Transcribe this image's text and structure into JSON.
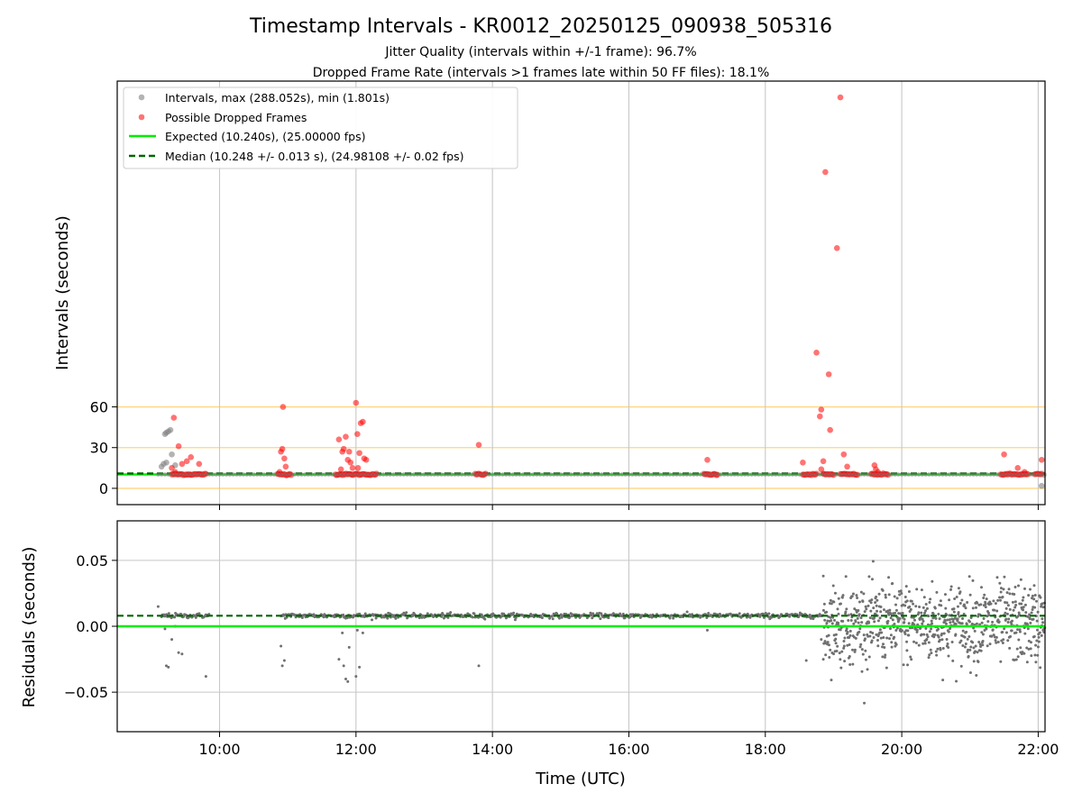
{
  "title": "Timestamp Intervals - KR0012_20250125_090938_505316",
  "subtitle_1": "Jitter Quality (intervals within +/-1 frame): 96.7%",
  "subtitle_2": "Dropped Frame Rate (intervals >1 frames late within 50 FF files): 18.1%",
  "colors": {
    "intervals": "#808080",
    "dropped": "#ff0000",
    "expected": "#00ee00",
    "median": "#006400",
    "threshold_lines": "#ffd580",
    "grid": "#c8c8c8"
  },
  "chart_data": [
    {
      "type": "scatter",
      "panel": "top",
      "xlabel": "",
      "ylabel": "Intervals (seconds)",
      "xlim_hours": [
        8.5,
        22.1
      ],
      "ylim": [
        -12,
        300
      ],
      "yticks": [
        0,
        30,
        60
      ],
      "xticks_hours": [
        10,
        12,
        14,
        16,
        18,
        20,
        22
      ],
      "grid": "vertical",
      "horizontal_reference_lines": [
        0,
        30,
        60
      ],
      "legend_position": "top-left",
      "legend": {
        "intervals": "Intervals, max (288.052s), min (1.801s)",
        "dropped": "Possible Dropped Frames",
        "expected": "Expected (10.240s), (25.00000 fps)",
        "median": "Median (10.248 +/- 0.013 s), (24.98108 +/- 0.02 fps)"
      },
      "expected_value": 10.24,
      "median_value": 10.248,
      "series": [
        {
          "name": "Intervals, max (288.052s), min (1.801s)",
          "points": [
            [
              9.15,
              16
            ],
            [
              9.18,
              18
            ],
            [
              9.2,
              40
            ],
            [
              9.22,
              41
            ],
            [
              9.25,
              42
            ],
            [
              9.28,
              43
            ],
            [
              9.3,
              25
            ],
            [
              9.22,
              19
            ],
            [
              9.35,
              17
            ],
            [
              22.05,
              1.8
            ],
            [
              22.08,
              10
            ]
          ]
        },
        {
          "name": "Possible Dropped Frames",
          "points": [
            [
              9.33,
              52
            ],
            [
              9.4,
              31
            ],
            [
              9.45,
              18
            ],
            [
              9.52,
              20
            ],
            [
              9.58,
              23
            ],
            [
              9.7,
              18
            ],
            [
              9.3,
              15
            ],
            [
              9.35,
              12
            ],
            [
              10.9,
              27
            ],
            [
              10.92,
              29
            ],
            [
              10.93,
              60
            ],
            [
              10.95,
              22
            ],
            [
              10.97,
              16
            ],
            [
              10.88,
              12
            ],
            [
              11.75,
              36
            ],
            [
              11.8,
              27
            ],
            [
              11.82,
              29
            ],
            [
              11.85,
              38
            ],
            [
              11.88,
              21
            ],
            [
              11.9,
              27
            ],
            [
              11.92,
              19
            ],
            [
              11.95,
              15
            ],
            [
              11.78,
              14
            ],
            [
              12.0,
              63
            ],
            [
              12.02,
              40
            ],
            [
              12.05,
              26
            ],
            [
              12.07,
              48
            ],
            [
              12.1,
              49
            ],
            [
              12.12,
              22
            ],
            [
              12.15,
              21
            ],
            [
              12.03,
              15
            ],
            [
              13.8,
              32
            ],
            [
              17.15,
              21
            ],
            [
              18.55,
              19
            ],
            [
              18.75,
              100
            ],
            [
              18.8,
              53
            ],
            [
              18.82,
              58
            ],
            [
              18.85,
              20
            ],
            [
              18.88,
              233
            ],
            [
              18.93,
              84
            ],
            [
              18.95,
              43
            ],
            [
              19.05,
              177
            ],
            [
              19.1,
              288
            ],
            [
              19.15,
              25
            ],
            [
              19.2,
              16
            ],
            [
              18.82,
              14
            ],
            [
              19.6,
              17
            ],
            [
              19.62,
              14
            ],
            [
              19.65,
              12
            ],
            [
              21.5,
              25
            ],
            [
              21.7,
              15
            ],
            [
              22.05,
              21
            ],
            [
              21.8,
              12
            ]
          ],
          "clusters_near_expected": [
            [
              9.3,
              9.8
            ],
            [
              10.85,
              11.05
            ],
            [
              11.7,
              12.3
            ],
            [
              13.75,
              13.9
            ],
            [
              17.1,
              17.3
            ],
            [
              18.55,
              18.75
            ],
            [
              18.85,
              19.0
            ],
            [
              19.1,
              19.35
            ],
            [
              19.55,
              19.8
            ],
            [
              21.45,
              21.85
            ],
            [
              21.95,
              22.05
            ]
          ]
        },
        {
          "name": "Expected (10.240s), (25.00000 fps)",
          "constant": 10.24
        },
        {
          "name": "Median (10.248 +/- 0.013 s), (24.98108 +/- 0.02 fps)",
          "constant": 10.248
        }
      ]
    },
    {
      "type": "scatter",
      "panel": "bottom",
      "xlabel": "Time (UTC)",
      "ylabel": "Residuals (seconds)",
      "xlim_hours": [
        8.5,
        22.1
      ],
      "ylim": [
        -0.08,
        0.08
      ],
      "yticks": [
        0.05,
        0.0,
        -0.05
      ],
      "ytick_labels": [
        "0.05",
        "0.00",
        "−0.05"
      ],
      "xticks_hours": [
        10,
        12,
        14,
        16,
        18,
        20,
        22
      ],
      "xtick_labels": [
        "10:00",
        "12:00",
        "14:00",
        "16:00",
        "18:00",
        "20:00",
        "22:00"
      ],
      "grid": "both",
      "expected_residual": 0.0,
      "median_residual": 0.008,
      "series": [
        {
          "name": "Residuals",
          "stable_period": {
            "x_range": [
              9.15,
              18.85
            ],
            "center": 0.008,
            "spread": 0.0015,
            "gaps": [
              [
                9.85,
                10.9
              ]
            ]
          },
          "noisy_period": {
            "x_range": [
              18.85,
              22.1
            ],
            "center": 0.002,
            "spread": 0.02
          },
          "outliers": [
            [
              9.1,
              0.015
            ],
            [
              9.2,
              -0.002
            ],
            [
              9.22,
              -0.03
            ],
            [
              9.25,
              -0.031
            ],
            [
              9.4,
              -0.02
            ],
            [
              9.45,
              -0.021
            ],
            [
              9.3,
              -0.01
            ],
            [
              9.8,
              -0.038
            ],
            [
              9.35,
              0.0
            ],
            [
              10.9,
              -0.015
            ],
            [
              10.92,
              -0.03
            ],
            [
              10.95,
              -0.026
            ],
            [
              11.75,
              -0.025
            ],
            [
              11.8,
              -0.005
            ],
            [
              11.85,
              -0.04
            ],
            [
              11.82,
              -0.03
            ],
            [
              11.9,
              -0.016
            ],
            [
              11.88,
              -0.042
            ],
            [
              12.0,
              -0.038
            ],
            [
              12.05,
              -0.031
            ],
            [
              12.02,
              -0.003
            ],
            [
              12.1,
              -0.005
            ],
            [
              13.8,
              -0.03
            ],
            [
              17.15,
              -0.003
            ],
            [
              18.6,
              -0.026
            ],
            [
              18.82,
              -0.01
            ],
            [
              18.85,
              -0.025
            ]
          ]
        }
      ]
    }
  ]
}
